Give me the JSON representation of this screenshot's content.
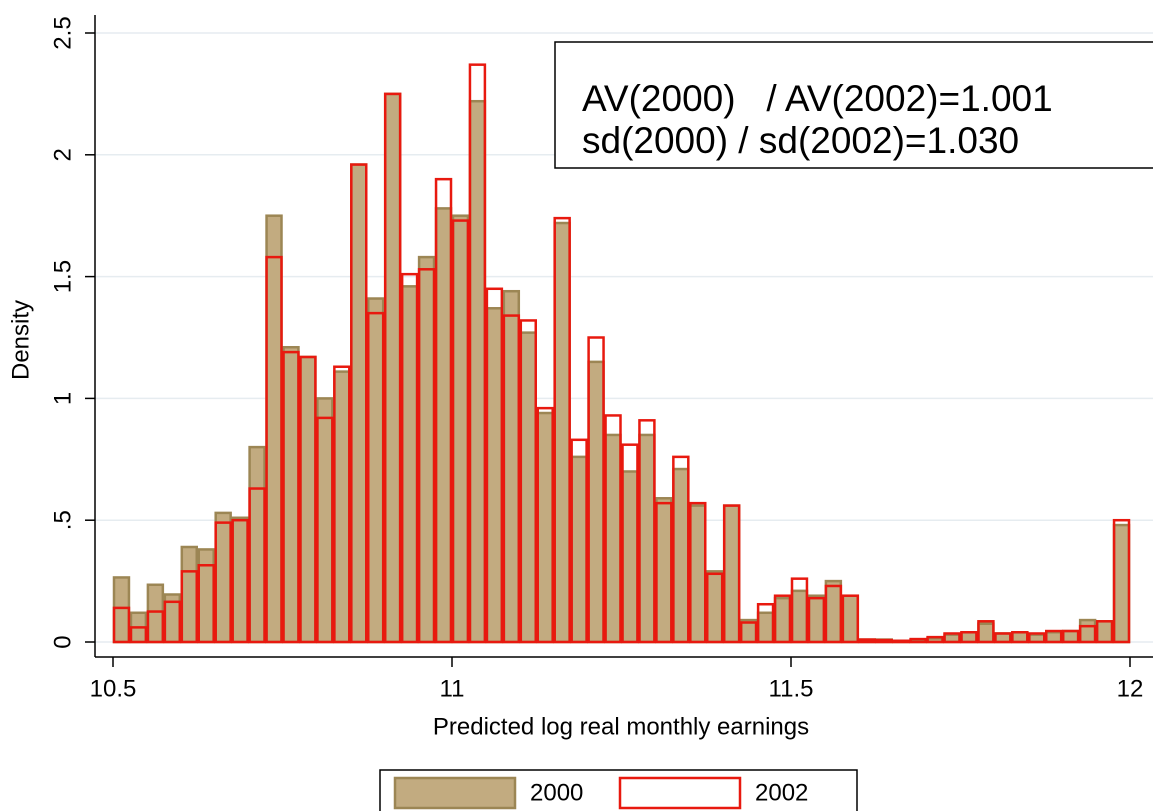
{
  "chart_data": {
    "type": "histogram",
    "xlabel": "Predicted log real monthly earnings",
    "ylabel": "Density",
    "annotations": [
      "AV(2000)   / AV(2002)=1.001",
      "sd(2000) / sd(2002)=1.030"
    ],
    "bins": [
      10.5,
      10.525,
      10.55,
      10.575,
      10.6,
      10.625,
      10.65,
      10.675,
      10.7,
      10.725,
      10.75,
      10.775,
      10.8,
      10.825,
      10.85,
      10.875,
      10.9,
      10.925,
      10.95,
      10.975,
      11,
      11.025,
      11.05,
      11.075,
      11.1,
      11.125,
      11.15,
      11.175,
      11.2,
      11.225,
      11.25,
      11.275,
      11.3,
      11.325,
      11.35,
      11.375,
      11.4,
      11.425,
      11.45,
      11.475,
      11.5,
      11.525,
      11.55,
      11.575,
      11.6,
      11.625,
      11.65,
      11.675,
      11.7,
      11.725,
      11.75,
      11.775,
      11.8,
      11.825,
      11.85,
      11.875,
      11.9,
      11.925,
      11.95,
      11.975,
      12
    ],
    "series": [
      {
        "name": "2000",
        "color": "#c2ab80",
        "edgecolor": "#9c8654",
        "filled": true,
        "values": [
          0.265,
          0.12,
          0.235,
          0.195,
          0.39,
          0.38,
          0.53,
          0.51,
          0.8,
          1.75,
          1.21,
          1.17,
          1.0,
          1.11,
          1.96,
          1.41,
          2.25,
          1.46,
          1.58,
          1.78,
          1.75,
          2.22,
          1.37,
          1.44,
          1.27,
          0.94,
          1.72,
          0.76,
          1.15,
          0.85,
          0.7,
          0.85,
          0.59,
          0.71,
          0.56,
          0.29,
          0.56,
          0.09,
          0.12,
          0.18,
          0.21,
          0.19,
          0.25,
          0.19,
          0.01,
          0.01,
          0.005,
          0.01,
          0.015,
          0.03,
          0.04,
          0.075,
          0.035,
          0.04,
          0.03,
          0.04,
          0.045,
          0.09,
          0.085,
          0.48
        ]
      },
      {
        "name": "2002",
        "color": "#e8190f",
        "edgecolor": "#e8190f",
        "filled": false,
        "values": [
          0.14,
          0.06,
          0.125,
          0.165,
          0.29,
          0.315,
          0.49,
          0.5,
          0.63,
          1.58,
          1.19,
          1.17,
          0.92,
          1.13,
          1.96,
          1.35,
          2.25,
          1.51,
          1.53,
          1.9,
          1.73,
          2.37,
          1.45,
          1.34,
          1.32,
          0.96,
          1.74,
          0.83,
          1.25,
          0.93,
          0.81,
          0.91,
          0.57,
          0.76,
          0.57,
          0.28,
          0.56,
          0.08,
          0.155,
          0.19,
          0.26,
          0.18,
          0.23,
          0.19,
          0.01,
          0.008,
          0.005,
          0.012,
          0.02,
          0.035,
          0.04,
          0.085,
          0.035,
          0.04,
          0.035,
          0.045,
          0.045,
          0.065,
          0.085,
          0.5
        ]
      }
    ],
    "xlim": [
      10.5,
      12
    ],
    "ylim": [
      0,
      2.5
    ],
    "xticks": [
      10.5,
      11,
      11.5,
      12
    ],
    "yticks": [
      0,
      {
        "value": 0.5,
        "label": ".5"
      },
      1,
      1.5,
      2,
      2.5
    ],
    "grid": true,
    "legend": "bottom"
  }
}
